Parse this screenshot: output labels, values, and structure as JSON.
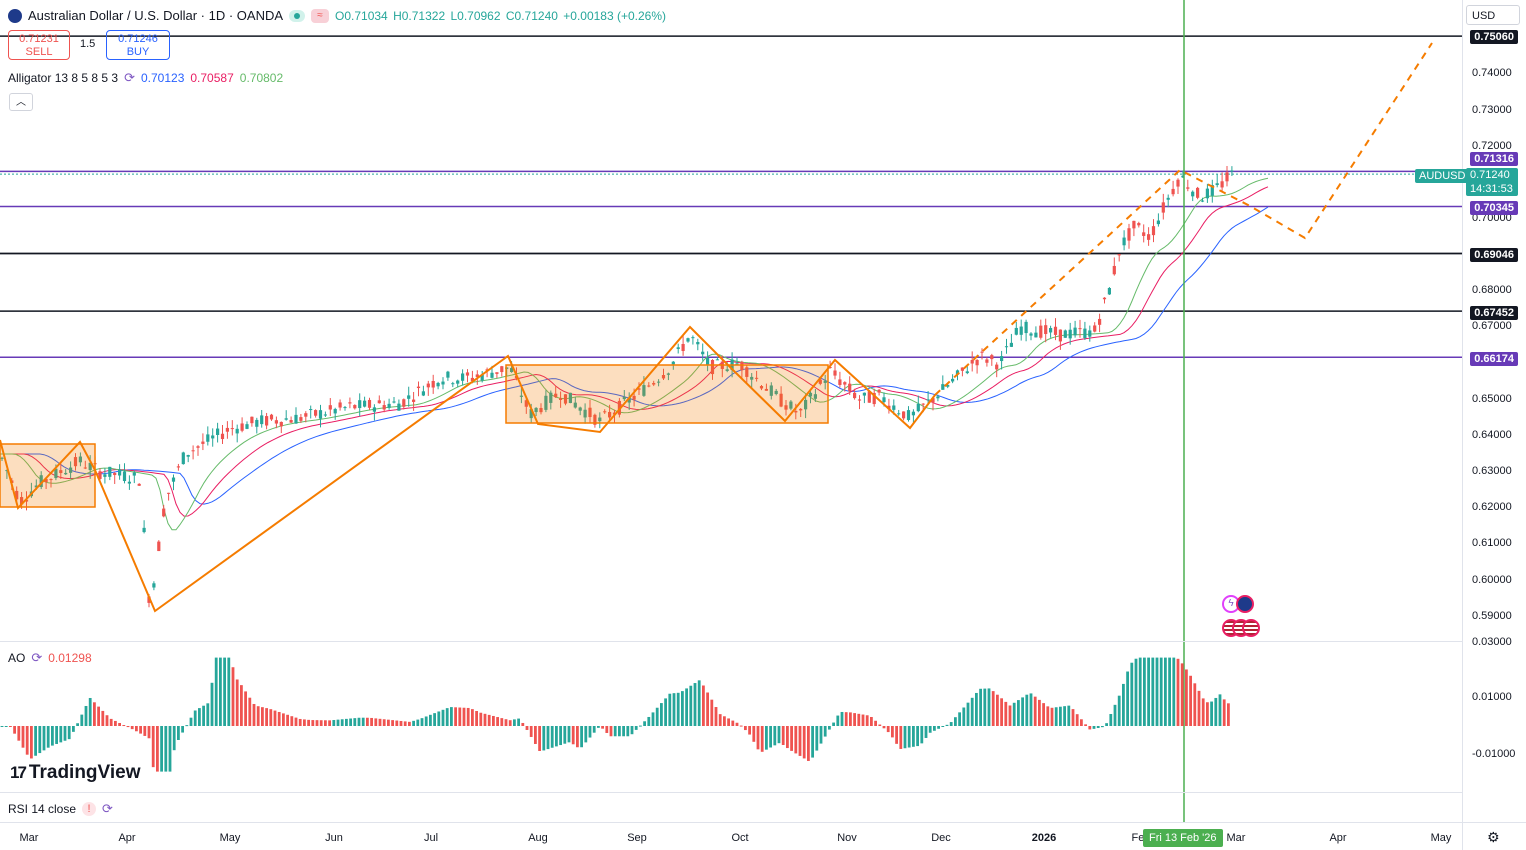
{
  "header": {
    "symbol_title": "Australian Dollar / U.S. Dollar · 1D · OANDA",
    "open": "O0.71034",
    "high": "H0.71322",
    "low": "L0.70962",
    "close": "C0.71240",
    "change": "+0.00183 (+0.26%)",
    "currency": "USD"
  },
  "trade": {
    "sell_price": "0.71231",
    "sell_label": "SELL",
    "spread": "1.5",
    "buy_price": "0.71246",
    "buy_label": "BUY"
  },
  "indicators": {
    "alligator_label": "Alligator 13 8 5 8 5 3",
    "alligator_jaw": "0.70123",
    "alligator_teeth": "0.70587",
    "alligator_lips": "0.70802",
    "ao_label": "AO",
    "ao_value": "0.01298",
    "rsi_label": "RSI 14 close"
  },
  "price_axis": {
    "ticks": [
      "0.74000",
      "0.73000",
      "0.72000",
      "0.70000",
      "0.68000",
      "0.67000",
      "0.65000",
      "0.64000",
      "0.63000",
      "0.62000",
      "0.61000",
      "0.60000",
      "0.59000"
    ],
    "labels": {
      "level_1": "0.75060",
      "level_2": "0.71316",
      "symbol_tag": "AUDUSD",
      "current": "0.71240",
      "countdown": "14:31:53",
      "level_3": "0.70345",
      "level_4": "0.69046",
      "level_5": "0.67452",
      "level_6": "0.66174"
    }
  },
  "ao_axis": {
    "ticks": [
      "0.03000",
      "0.01000",
      "-0.01000"
    ]
  },
  "time_axis": {
    "ticks": [
      "Mar",
      "Apr",
      "May",
      "Jun",
      "Jul",
      "Aug",
      "Sep",
      "Oct",
      "Nov",
      "Dec",
      "2026",
      "Feb",
      "Mar",
      "Apr",
      "May"
    ],
    "crosshair_label": "Fri 13 Feb '26"
  },
  "branding": {
    "logo_text": "TradingView"
  },
  "colors": {
    "up": "#26a69a",
    "down": "#ef5350",
    "orange": "#f57c00",
    "purple": "#673ab7",
    "crosshair": "#4caf50",
    "jaw": "#2962ff",
    "teeth": "#e91e63",
    "lips": "#66bb6a"
  }
}
